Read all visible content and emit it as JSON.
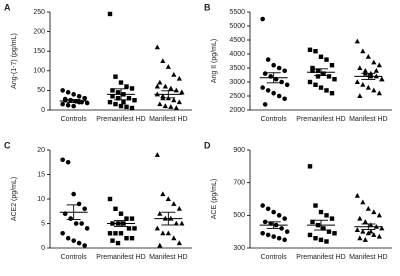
{
  "chart_data": [
    {
      "type": "strip",
      "panel": "A",
      "y_label": "Ang-(1-7) (pg/mL)",
      "ylim": [
        0,
        250
      ],
      "yticks": [
        0,
        50,
        100,
        150,
        200,
        250
      ],
      "categories": [
        "Controls",
        "Premanifest HD",
        "Manifest HD"
      ],
      "color": "#000000",
      "series": [
        {
          "marker": "circle",
          "values": [
            50,
            45,
            40,
            35,
            30,
            28,
            25,
            22,
            20,
            18,
            15,
            12,
            10,
            20,
            30,
            25
          ],
          "mean": 23,
          "sem": 4
        },
        {
          "marker": "square",
          "values": [
            245,
            85,
            70,
            60,
            55,
            50,
            45,
            40,
            30,
            25,
            20,
            15,
            10,
            8,
            5,
            35,
            30,
            20
          ],
          "mean": 40,
          "sem": 14
        },
        {
          "marker": "triangle",
          "values": [
            160,
            125,
            110,
            90,
            80,
            70,
            60,
            55,
            50,
            45,
            40,
            35,
            30,
            25,
            20,
            15,
            10,
            8,
            5,
            45,
            60,
            30
          ],
          "mean": 40,
          "sem": 9
        }
      ]
    },
    {
      "type": "strip",
      "panel": "B",
      "y_label": "Ang II (pg/mL)",
      "ylim": [
        2000,
        5500
      ],
      "yticks": [
        2000,
        2500,
        3000,
        3500,
        4000,
        4500,
        5000,
        5500
      ],
      "categories": [
        "Controls",
        "Premanifest HD",
        "Manifest HD"
      ],
      "color": "#000000",
      "series": [
        {
          "marker": "circle",
          "values": [
            5250,
            3800,
            3600,
            3500,
            3400,
            3300,
            3200,
            3100,
            3000,
            2900,
            2800,
            2700,
            2600,
            2500,
            2400,
            2200
          ],
          "mean": 3150,
          "sem": 180
        },
        {
          "marker": "square",
          "values": [
            4150,
            4100,
            3900,
            3800,
            3600,
            3500,
            3400,
            3300,
            3200,
            3100,
            3000,
            2900,
            2800,
            2700,
            2600,
            3400,
            3200
          ],
          "mean": 3350,
          "sem": 120
        },
        {
          "marker": "triangle",
          "values": [
            4450,
            4100,
            3900,
            3700,
            3600,
            3500,
            3400,
            3300,
            3200,
            3100,
            3000,
            2900,
            2800,
            2700,
            2600,
            2500,
            3300,
            3200,
            3400,
            3100
          ],
          "mean": 3200,
          "sem": 110
        }
      ]
    },
    {
      "type": "strip",
      "panel": "C",
      "y_label": "ACE2 (pg/mL)",
      "ylim": [
        0,
        20
      ],
      "yticks": [
        0,
        5,
        10,
        15,
        20
      ],
      "categories": [
        "Controls",
        "Premanifest HD",
        "Manifest HD"
      ],
      "color": "#000000",
      "series": [
        {
          "marker": "circle",
          "values": [
            18,
            17.5,
            11,
            9,
            8,
            7,
            6,
            5,
            5,
            4,
            3,
            2,
            1.5,
            1,
            0.5
          ],
          "mean": 7.3,
          "sem": 1.5
        },
        {
          "marker": "square",
          "values": [
            10,
            8,
            7,
            6,
            6,
            5,
            5,
            5,
            4,
            4,
            3,
            3,
            3,
            2,
            2,
            1.5,
            1
          ],
          "mean": 5,
          "sem": 0.6
        },
        {
          "marker": "triangle",
          "values": [
            19,
            11,
            10,
            9,
            8,
            7,
            6,
            6,
            5,
            5,
            4,
            3,
            3,
            2,
            1,
            0.5
          ],
          "mean": 6,
          "sem": 1.3
        }
      ]
    },
    {
      "type": "strip",
      "panel": "D",
      "y_label": "ACE (pg/mL)",
      "ylim": [
        300,
        900
      ],
      "yticks": [
        300,
        500,
        700,
        900
      ],
      "categories": [
        "Controls",
        "Premanifest HD",
        "Manifest HD"
      ],
      "color": "#000000",
      "series": [
        {
          "marker": "circle",
          "values": [
            560,
            540,
            520,
            500,
            480,
            460,
            450,
            440,
            420,
            400,
            390,
            380,
            370,
            360,
            350
          ],
          "mean": 440,
          "sem": 20
        },
        {
          "marker": "square",
          "values": [
            800,
            560,
            520,
            500,
            480,
            460,
            440,
            420,
            400,
            390,
            380,
            360,
            350,
            340
          ],
          "mean": 440,
          "sem": 30
        },
        {
          "marker": "triangle",
          "values": [
            620,
            580,
            540,
            520,
            500,
            480,
            460,
            440,
            430,
            420,
            410,
            400,
            390,
            380,
            370,
            360,
            350,
            400
          ],
          "mean": 430,
          "sem": 17
        }
      ]
    }
  ]
}
